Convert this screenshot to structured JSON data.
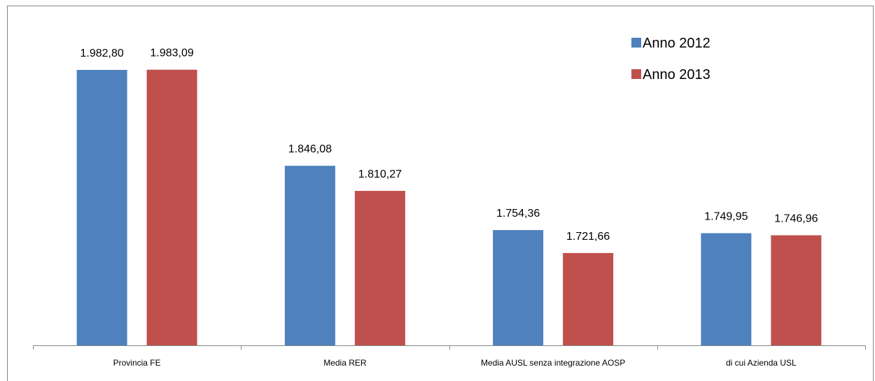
{
  "chart_data": {
    "type": "bar",
    "categories": [
      "Provincia FE",
      "Media RER",
      "Media AUSL senza integrazione AOSP",
      "di cui Azienda USL"
    ],
    "series": [
      {
        "name": "Anno 2012",
        "color": "#4F81BD",
        "values": [
          1982.8,
          1846.08,
          1754.36,
          1749.95
        ],
        "labels": [
          "1.982,80",
          "1.846,08",
          "1.754,36",
          "1.749,95"
        ]
      },
      {
        "name": "Anno 2013",
        "color": "#C0504D",
        "values": [
          1983.09,
          1810.27,
          1721.66,
          1746.96
        ],
        "labels": [
          "1.983,09",
          "1.810,27",
          "1.721,66",
          "1.746,96"
        ]
      }
    ],
    "ylim": [
      1590,
      2000
    ],
    "grid": false,
    "legend_position": "top-right"
  }
}
